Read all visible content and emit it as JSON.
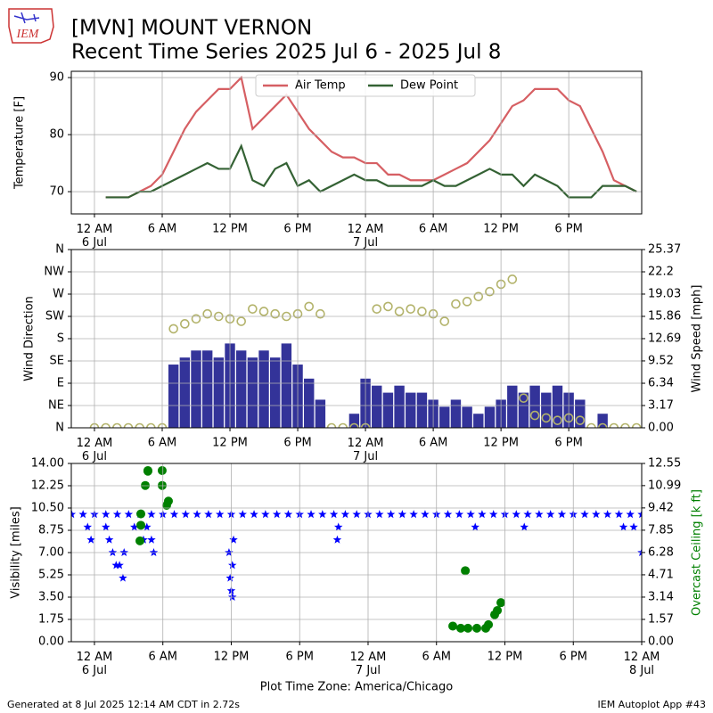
{
  "title": "[MVN] MOUNT VERNON",
  "subtitle": "Recent Time Series 2025 Jul 6 - 2025 Jul 8",
  "logo_text": "IEM",
  "footer_left": "Generated at 8 Jul 2025 12:14 AM CDT in 2.72s",
  "footer_right": "IEM Autoplot App #43",
  "chart_data": [
    {
      "type": "line",
      "ylabel": "Temperature [F]",
      "xlim": [
        -2.05,
        48.46
      ],
      "ylim": [
        66.1,
        91.1
      ],
      "xticks": [
        {
          "value": 0,
          "label": "12 AM\n6 Jul"
        },
        {
          "value": 6,
          "label": "6 AM"
        },
        {
          "value": 12,
          "label": "12 PM"
        },
        {
          "value": 18,
          "label": "6 PM"
        },
        {
          "value": 24,
          "label": "12 AM\n7 Jul"
        },
        {
          "value": 30,
          "label": "6 AM"
        },
        {
          "value": 36,
          "label": "12 PM"
        },
        {
          "value": 42,
          "label": "6 PM"
        }
      ],
      "yticks": [
        70,
        80,
        90
      ],
      "grid": true,
      "legend": "upper center",
      "x": [
        1,
        2,
        3,
        4,
        5,
        6,
        7,
        8,
        9,
        10,
        11,
        12,
        13,
        14,
        15,
        16,
        17,
        18,
        19,
        20,
        21,
        22,
        23,
        24,
        25,
        26,
        27,
        28,
        29,
        30,
        31,
        32,
        33,
        34,
        35,
        36,
        37,
        38,
        39,
        40,
        41,
        42,
        43,
        44,
        45,
        46,
        47,
        48
      ],
      "series": [
        {
          "name": "Air Temp",
          "color": "#d65f63",
          "values": [
            69,
            69,
            69,
            70,
            71,
            73,
            77,
            81,
            84,
            86,
            88,
            88,
            90,
            81,
            83,
            85,
            87,
            84,
            81,
            79,
            77,
            76,
            76,
            75,
            75,
            73,
            73,
            72,
            72,
            72,
            73,
            74,
            75,
            77,
            79,
            82,
            85,
            86,
            88,
            88,
            88,
            86,
            85,
            81,
            77,
            72,
            71,
            70
          ]
        },
        {
          "name": "Dew Point",
          "color": "#346234",
          "values": [
            69,
            69,
            69,
            70,
            70,
            71,
            72,
            73,
            74,
            75,
            74,
            74,
            78,
            72,
            71,
            74,
            75,
            71,
            72,
            70,
            71,
            72,
            73,
            72,
            72,
            71,
            71,
            71,
            71,
            72,
            71,
            71,
            72,
            73,
            74,
            73,
            73,
            71,
            73,
            72,
            71,
            69,
            69,
            69,
            71,
            71,
            71,
            70
          ]
        }
      ]
    },
    {
      "type": "combo",
      "ylabel": "Wind Direction",
      "y2label": "Wind Speed [mph]",
      "xlim": [
        -2.05,
        48.46
      ],
      "ylim": [
        0,
        360
      ],
      "y2lim": [
        0,
        25.37
      ],
      "xticks": [
        {
          "value": 0,
          "label": "12 AM\n6 Jul"
        },
        {
          "value": 6,
          "label": "6 AM"
        },
        {
          "value": 12,
          "label": "12 PM"
        },
        {
          "value": 18,
          "label": "6 PM"
        },
        {
          "value": 24,
          "label": "12 AM\n7 Jul"
        },
        {
          "value": 30,
          "label": "6 AM"
        },
        {
          "value": 36,
          "label": "12 PM"
        },
        {
          "value": 42,
          "label": "6 PM"
        }
      ],
      "yticks": [
        {
          "value": 0,
          "label": "N"
        },
        {
          "value": 45,
          "label": "NE"
        },
        {
          "value": 90,
          "label": "E"
        },
        {
          "value": 135,
          "label": "SE"
        },
        {
          "value": 180,
          "label": "S"
        },
        {
          "value": 225,
          "label": "SW"
        },
        {
          "value": 270,
          "label": "W"
        },
        {
          "value": 315,
          "label": "NW"
        },
        {
          "value": 360,
          "label": "N"
        }
      ],
      "y2ticks": [
        {
          "value": 0,
          "label": "0.00"
        },
        3.17,
        6.34,
        9.52,
        12.69,
        15.86,
        19.03,
        22.2,
        25.37
      ],
      "grid": true,
      "x": [
        0,
        1,
        2,
        3,
        4,
        5,
        6,
        7,
        8,
        9,
        10,
        11,
        12,
        13,
        14,
        15,
        16,
        17,
        18,
        19,
        20,
        21,
        22,
        23,
        24,
        25,
        26,
        27,
        28,
        29,
        30,
        31,
        32,
        33,
        34,
        35,
        36,
        37,
        38,
        39,
        40,
        41,
        42,
        43,
        44,
        45,
        46,
        47,
        48
      ],
      "series": [
        {
          "type": "bar",
          "axis": "y2",
          "color": "#333399",
          "values": [
            0,
            0,
            0,
            0,
            0,
            0,
            0,
            9,
            10,
            11,
            11,
            10,
            12,
            11,
            10,
            11,
            10,
            12,
            9,
            7,
            4,
            0,
            0,
            2,
            7,
            6,
            5,
            6,
            5,
            5,
            4,
            3,
            4,
            3,
            2,
            3,
            4,
            6,
            5,
            6,
            5,
            6,
            5,
            4,
            0,
            2,
            0,
            0,
            0
          ]
        },
        {
          "type": "scatter",
          "marker": "circle-open",
          "color": "#b3b36b",
          "values": [
            0,
            0,
            0,
            0,
            0,
            0,
            0,
            200,
            210,
            220,
            230,
            225,
            220,
            215,
            240,
            235,
            230,
            225,
            230,
            245,
            230,
            0,
            0,
            0,
            0,
            240,
            245,
            235,
            240,
            235,
            230,
            215,
            250,
            255,
            265,
            275,
            290,
            300,
            60,
            25,
            20,
            15,
            20,
            15,
            0,
            0,
            0,
            0,
            0
          ]
        }
      ]
    },
    {
      "type": "scatter",
      "ylabel": "Visibility [miles]",
      "y2label": "Overcast Ceiling [k ft]",
      "y2color": "#008000",
      "xlabel": "Plot Time Zone: America/Chicago",
      "xlim": [
        -2.03,
        48
      ],
      "ylim": [
        0,
        14
      ],
      "y2lim": [
        0,
        12.55
      ],
      "xticks": [
        {
          "value": 0,
          "label": "12 AM\n6 Jul"
        },
        {
          "value": 6,
          "label": "6 AM"
        },
        {
          "value": 12,
          "label": "12 PM"
        },
        {
          "value": 18,
          "label": "6 PM"
        },
        {
          "value": 24,
          "label": "12 AM\n7 Jul"
        },
        {
          "value": 30,
          "label": "6 AM"
        },
        {
          "value": 36,
          "label": "12 PM"
        },
        {
          "value": 42,
          "label": "6 PM"
        },
        {
          "value": 48,
          "label": "12 AM\n8 Jul"
        }
      ],
      "yticks": [
        {
          "value": 0,
          "label": "0.00"
        },
        1.75,
        {
          "value": 3.5,
          "label": "3.50"
        },
        5.25,
        {
          "value": 7,
          "label": "7.00"
        },
        8.75,
        {
          "value": 10.5,
          "label": "10.50"
        },
        12.25,
        {
          "value": 14,
          "label": "14.00"
        }
      ],
      "y2ticks": [
        {
          "value": 0,
          "label": "0.00"
        },
        1.57,
        3.14,
        4.71,
        6.28,
        7.85,
        9.42,
        10.99,
        12.55
      ],
      "grid": true,
      "series": [
        {
          "marker": "star",
          "color": "#0000ff",
          "x": [
            -2,
            -1,
            0,
            1,
            2,
            3,
            4,
            5,
            6,
            7,
            8,
            9,
            10,
            11,
            12,
            13,
            14,
            15,
            16,
            17,
            18,
            19,
            20,
            21,
            22,
            23,
            24,
            25,
            26,
            27,
            28,
            29,
            30,
            31,
            32,
            33,
            34,
            35,
            36,
            37,
            38,
            39,
            40,
            41,
            42,
            43,
            44,
            45,
            46,
            47,
            48,
            -0.3,
            -0.6,
            1,
            1.3,
            1.6,
            1.9,
            2.2,
            2.5,
            2.6,
            3.5,
            4.3,
            4.6,
            5,
            5.2,
            11.8,
            11.9,
            12,
            12.1,
            12.2,
            12.1,
            21.3,
            21.4,
            33.4,
            37.7,
            46.4,
            47.3,
            48
          ],
          "values": [
            10,
            10,
            10,
            10,
            10,
            10,
            10,
            10,
            10,
            10,
            10,
            10,
            10,
            10,
            10,
            10,
            10,
            10,
            10,
            10,
            10,
            10,
            10,
            10,
            10,
            10,
            10,
            10,
            10,
            10,
            10,
            10,
            10,
            10,
            10,
            10,
            10,
            10,
            10,
            10,
            10,
            10,
            10,
            10,
            10,
            10,
            10,
            10,
            10,
            10,
            10,
            8,
            9,
            9,
            8,
            7,
            6,
            6,
            5,
            7,
            9,
            8,
            9,
            8,
            7,
            7,
            5,
            4,
            3.5,
            8,
            6,
            8,
            9,
            9,
            9,
            9,
            9,
            7
          ]
        },
        {
          "marker": "circle",
          "color": "#008000",
          "axis": "y2",
          "x": [
            3.99,
            4.07,
            4.07,
            4.46,
            4.69,
            4.69,
            5.94,
            5.94,
            6.33,
            6.49,
            31.43,
            32.13,
            32.53,
            32.76,
            33.54,
            34.32,
            34.56,
            35.1,
            35.34,
            35.65
          ],
          "values": [
            7.1,
            8.2,
            9,
            11,
            12,
            12.05,
            12.05,
            11,
            9.6,
            9.9,
            1.1,
            0.95,
            5,
            0.95,
            0.95,
            0.95,
            1.2,
            1.9,
            2.2,
            2.75
          ]
        }
      ]
    }
  ]
}
